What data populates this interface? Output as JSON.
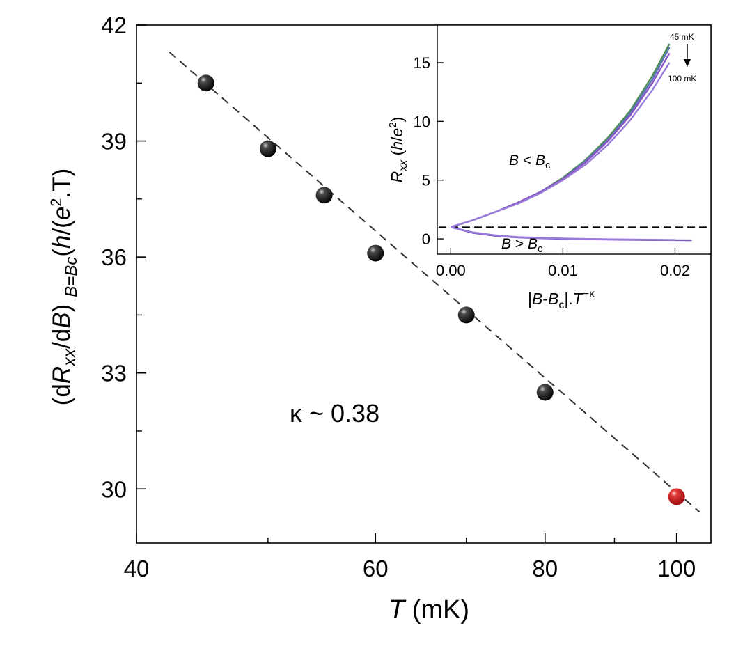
{
  "chart_data": [
    {
      "type": "scatter",
      "xlabel": {
        "var": "T",
        "unit": " (mK)"
      },
      "ylabel": {
        "open": "(d",
        "var": "R",
        "sub": "xx",
        "mid": "/d",
        "var2": "B",
        "close": ")",
        "eval_sub": "B=Bc",
        "unit_open": "(",
        "unit_h": "h",
        "unit_slash": "/(",
        "unit_e": "e",
        "unit_sup": "2",
        "unit_tail": ".T)"
      },
      "x_scale": "log",
      "xlim": [
        40,
        106
      ],
      "ylim": [
        28.6,
        42
      ],
      "x_ticks": [
        40,
        60,
        80,
        100
      ],
      "x_tick_labels": [
        "40",
        "60",
        "80",
        "100"
      ],
      "x_minor_ticks": [
        50,
        70,
        90
      ],
      "y_ticks": [
        30,
        33,
        36,
        39,
        42
      ],
      "y_tick_labels": [
        "30",
        "33",
        "36",
        "39",
        "42"
      ],
      "y_minor_ticks": [
        31.5,
        34.5,
        37.5,
        40.5
      ],
      "annotation": "κ ~ 0.38",
      "points": [
        {
          "x": 45,
          "y": 40.5,
          "color": "black"
        },
        {
          "x": 50,
          "y": 38.8,
          "color": "black"
        },
        {
          "x": 55,
          "y": 37.6,
          "color": "black"
        },
        {
          "x": 60,
          "y": 36.1,
          "color": "black"
        },
        {
          "x": 70,
          "y": 34.5,
          "color": "black"
        },
        {
          "x": 80,
          "y": 32.5,
          "color": "black"
        },
        {
          "x": 100,
          "y": 29.8,
          "color": "red"
        }
      ],
      "fit_line": {
        "x": [
          42.3,
          104
        ],
        "y": [
          41.3,
          29.4
        ],
        "style": "dashed"
      },
      "colors": {
        "black_point": "#1a1a1a",
        "red_point": "#d41c1c",
        "line": "#333333"
      },
      "grid": false
    },
    {
      "type": "line",
      "xlabel": {
        "pre": "|",
        "var": "B",
        "mid": "-",
        "var2": "B",
        "sub": "c",
        "post": "|.",
        "var3": "T",
        "sup": "−κ"
      },
      "ylabel": {
        "var": "R",
        "sub": "xx",
        "unit_open": " (",
        "unit_h": "h",
        "unit_slash": "/",
        "unit_e": "e",
        "unit_sup": "2",
        "unit_close": ")"
      },
      "xlim": [
        -0.0012,
        0.0232
      ],
      "ylim": [
        -1.3,
        18.2
      ],
      "x_ticks": [
        0.0,
        0.01,
        0.02
      ],
      "x_tick_labels": [
        "0.00",
        "0.01",
        "0.02"
      ],
      "y_ticks": [
        0,
        5,
        10,
        15
      ],
      "y_tick_labels": [
        "0",
        "5",
        "10",
        "15"
      ],
      "reference_line": {
        "y": 1.0,
        "style": "dashed"
      },
      "annotations": {
        "upper": {
          "var": "B",
          "op": " < ",
          "var2": "B",
          "sub": "c"
        },
        "lower": {
          "var": "B",
          "op": " > ",
          "var2": "B",
          "sub": "c"
        },
        "temp_high": "45 mK",
        "temp_low": "100 mK"
      },
      "series": [
        {
          "branch": "upper",
          "color": "#4e8d55",
          "x": [
            0,
            0.002,
            0.004,
            0.006,
            0.008,
            0.01,
            0.012,
            0.014,
            0.016,
            0.018,
            0.0195
          ],
          "y": [
            1.0,
            1.6,
            2.3,
            3.1,
            4.0,
            5.2,
            6.7,
            8.6,
            10.9,
            13.9,
            16.6
          ]
        },
        {
          "branch": "upper",
          "color": "#5b74b8",
          "x": [
            0,
            0.002,
            0.004,
            0.006,
            0.008,
            0.01,
            0.012,
            0.014,
            0.016,
            0.018,
            0.0195
          ],
          "y": [
            1.0,
            1.6,
            2.3,
            3.1,
            4.0,
            5.1,
            6.6,
            8.4,
            10.7,
            13.6,
            16.3
          ]
        },
        {
          "branch": "upper",
          "color": "#8a55c6",
          "x": [
            0,
            0.002,
            0.004,
            0.006,
            0.008,
            0.01,
            0.012,
            0.014,
            0.016,
            0.018,
            0.0195
          ],
          "y": [
            1.0,
            1.6,
            2.3,
            3.1,
            4.0,
            5.1,
            6.5,
            8.3,
            10.5,
            13.3,
            15.8
          ]
        },
        {
          "branch": "upper",
          "color": "#9a7bd9",
          "x": [
            0,
            0.002,
            0.004,
            0.006,
            0.008,
            0.01,
            0.012,
            0.014,
            0.016,
            0.018,
            0.0195
          ],
          "y": [
            1.0,
            1.6,
            2.3,
            3.0,
            3.9,
            5.0,
            6.3,
            8.0,
            10.1,
            12.7,
            15.0
          ]
        },
        {
          "branch": "lower",
          "color": "#7b55c4",
          "x": [
            0,
            0.002,
            0.004,
            0.006,
            0.008,
            0.01,
            0.012,
            0.014,
            0.016,
            0.018,
            0.02,
            0.0215
          ],
          "y": [
            1.0,
            0.5,
            0.25,
            0.12,
            0.05,
            0.0,
            -0.03,
            -0.06,
            -0.08,
            -0.1,
            -0.11,
            -0.12
          ]
        },
        {
          "branch": "lower",
          "color": "#9a7bd9",
          "x": [
            0,
            0.002,
            0.004,
            0.006,
            0.008,
            0.01,
            0.012,
            0.014,
            0.016,
            0.018,
            0.02
          ],
          "y": [
            1.0,
            0.55,
            0.3,
            0.16,
            0.09,
            0.04,
            0.0,
            -0.03,
            -0.05,
            -0.07,
            -0.09
          ]
        }
      ],
      "grid": false
    }
  ]
}
